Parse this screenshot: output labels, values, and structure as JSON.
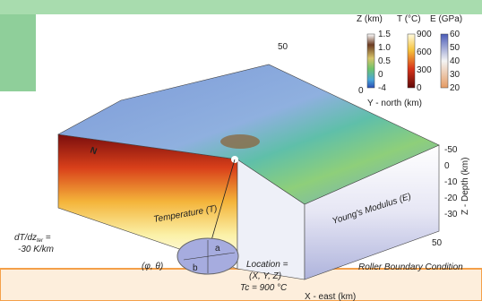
{
  "colorbars": [
    {
      "title": "Z (km)",
      "ticks": [
        "1.5",
        "1.0",
        "0.5",
        "0",
        "-4"
      ]
    },
    {
      "title": "T (°C)",
      "ticks": [
        "900",
        "600",
        "300",
        "0"
      ]
    },
    {
      "title": "E (GPa)",
      "ticks": [
        "60",
        "50",
        "40",
        "30",
        "20"
      ]
    }
  ],
  "axes": {
    "y_label": "Y - north (km)",
    "y_ticks": [
      "50",
      "0"
    ],
    "z_label": "Z - Depth (km)",
    "z_ticks": [
      "-50",
      "0",
      "-10",
      "-20",
      "-30"
    ],
    "x_label": "X - east (km)",
    "x_ticks": [
      "50"
    ]
  },
  "labels": {
    "north": "N",
    "temperature": "Temperature (T)",
    "modulus": "Young's Modulus (E)",
    "gradient": "dT/dz",
    "gradient_sub": "ter",
    "gradient_eq": " =",
    "gradient_value": "-30 K/km",
    "angles": "(φ, θ)",
    "a": "a",
    "b": "b",
    "location": "Location =",
    "location_coords": "(X, Y, Z)",
    "tc": "Tc = 900 °C",
    "boundary": "Roller Boundary Condition"
  }
}
